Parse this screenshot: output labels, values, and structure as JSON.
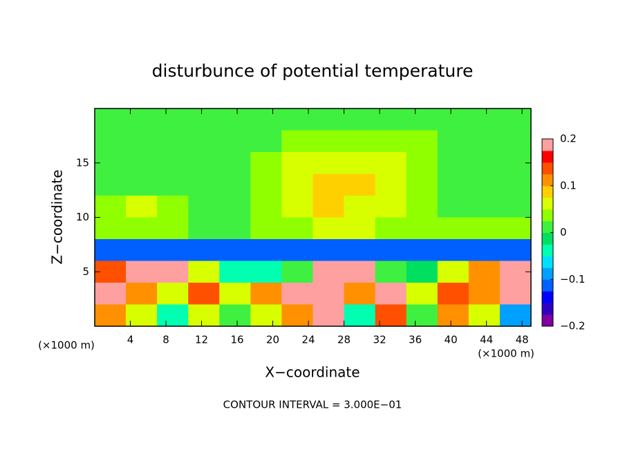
{
  "chart_data": {
    "type": "heatmap",
    "title": "disturbunce of potential temperature",
    "x_label": "X−coordinate",
    "y_label": "Z−coordinate",
    "x_unit": "(×1000 m)",
    "x_unit_right": "(×1000 m)",
    "note": "CONTOUR INTERVAL = 3.000E−01",
    "xlim": [
      0,
      49
    ],
    "ylim": [
      0,
      20
    ],
    "xticks": [
      4,
      8,
      12,
      16,
      20,
      24,
      28,
      32,
      36,
      40,
      44,
      48
    ],
    "yticks": [
      5,
      10,
      15
    ],
    "clim": [
      -0.2,
      0.2
    ],
    "cticks": [
      {
        "value": -0.2,
        "label": "−0.2"
      },
      {
        "value": -0.1,
        "label": "−0.1"
      },
      0,
      0.1,
      0.2
    ],
    "colormap": [
      "#8000a0",
      "#3000c0",
      "#0000ff",
      "#0060ff",
      "#00a0ff",
      "#00e0ff",
      "#00ffb0",
      "#00e060",
      "#40f040",
      "#90ff00",
      "#d8ff00",
      "#ffd000",
      "#ff9000",
      "#ff5000",
      "#ff0000",
      "#ffa0a0"
    ],
    "x": [
      1.75,
      5.25,
      8.75,
      12.25,
      15.75,
      19.25,
      22.75,
      26.25,
      29.75,
      33.25,
      36.75,
      40.25,
      43.75,
      47.25
    ],
    "y": [
      19,
      17,
      15,
      13,
      11,
      9,
      7,
      5,
      3,
      1
    ],
    "z": [
      [
        0,
        0,
        0,
        0,
        0.01,
        0.01,
        0.01,
        0.01,
        0.01,
        0.01,
        0.01,
        0.01,
        0.01,
        0
      ],
      [
        0.02,
        0.02,
        0.02,
        0.02,
        0.02,
        0.02,
        0.03,
        0.04,
        0.04,
        0.03,
        0.03,
        0.02,
        0.02,
        0.02
      ],
      [
        0.02,
        0.02,
        0.02,
        0.02,
        0.02,
        0.03,
        0.05,
        0.06,
        0.06,
        0.05,
        0.03,
        0.02,
        0.02,
        0.02
      ],
      [
        0.02,
        0.02,
        0.02,
        0.02,
        0.02,
        0.03,
        0.06,
        0.09,
        0.08,
        0.05,
        0.03,
        0.02,
        0.02,
        0.02
      ],
      [
        0.03,
        0.06,
        0.03,
        0.02,
        0.02,
        0.03,
        0.05,
        0.08,
        0.07,
        0.05,
        0.03,
        0.02,
        0.02,
        0.02
      ],
      [
        0.03,
        0.04,
        0.03,
        0.02,
        0.02,
        0.03,
        0.04,
        0.05,
        0.05,
        0.04,
        0.03,
        0.03,
        0.03,
        0.03
      ],
      [
        -0.12,
        -0.12,
        -0.12,
        -0.12,
        -0.12,
        -0.11,
        -0.11,
        -0.11,
        -0.11,
        -0.11,
        -0.11,
        -0.11,
        -0.12,
        -0.12
      ],
      [
        0.15,
        0.2,
        0.2,
        0.05,
        -0.05,
        -0.03,
        0.02,
        0.2,
        0.2,
        0.02,
        -0.02,
        0.05,
        0.1,
        0.2
      ],
      [
        0.2,
        0.12,
        0.05,
        0.15,
        0.05,
        0.1,
        0.2,
        0.2,
        0.1,
        0.2,
        0.05,
        0.15,
        0.1,
        0.2
      ],
      [
        0.1,
        0.05,
        -0.05,
        0.05,
        0,
        0.05,
        0.1,
        0.2,
        -0.05,
        0.15,
        0,
        0.1,
        0.05,
        -0.1
      ]
    ]
  }
}
